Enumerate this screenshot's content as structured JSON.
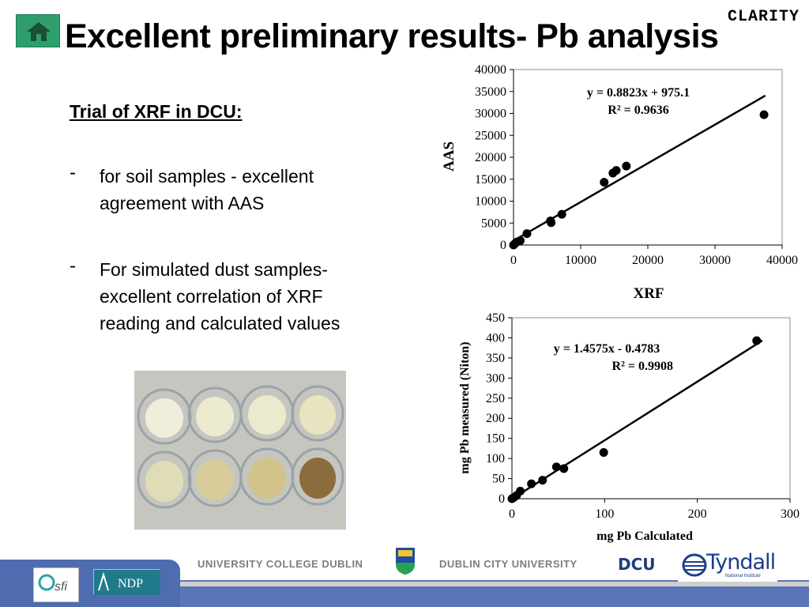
{
  "header": {
    "brand": "CLARITY",
    "title": "Excellent preliminary results- Pb analysis",
    "home_icon": "home-icon"
  },
  "content": {
    "subheading": "Trial of XRF in DCU:",
    "bullets": [
      {
        "marker": "-",
        "text": "for soil samples - excellent agreement with AAS"
      },
      {
        "marker": "-",
        "text": "For simulated dust samples- excellent correlation of XRF reading and calculated values"
      }
    ]
  },
  "colors": {
    "home_button": "#2e9e6e",
    "footer_band": "#5a76b6",
    "footer_panel": "#4f6cb0",
    "tyndall_blue": "#1b3e8a"
  },
  "footer": {
    "ucd_label": "UNIVERSITY COLLEGE DUBLIN",
    "dcu_label": "DUBLIN CITY UNIVERSITY",
    "dcu_logo": "DCU",
    "tyndall": "Tyndall",
    "tyndall_sub": "National Institute",
    "sfi_logo": "sfi",
    "ndp_logo": "NDP"
  },
  "chart_data": [
    {
      "type": "scatter",
      "xlabel": "XRF",
      "ylabel": "AAS",
      "xlim": [
        0,
        40000
      ],
      "ylim": [
        0,
        40000
      ],
      "xticks": [
        0,
        10000,
        20000,
        30000,
        40000
      ],
      "yticks": [
        0,
        5000,
        10000,
        15000,
        20000,
        25000,
        30000,
        35000,
        40000
      ],
      "equation": "y = 0.8823x + 975.1",
      "r2": "R² = 0.9636",
      "trendline": {
        "slope": 0.8823,
        "intercept": 975.1,
        "x_range": [
          0,
          37500
        ]
      },
      "points": [
        {
          "x": 0,
          "y": 0
        },
        {
          "x": 200,
          "y": 300
        },
        {
          "x": 500,
          "y": 700
        },
        {
          "x": 1000,
          "y": 1000
        },
        {
          "x": 2000,
          "y": 2600
        },
        {
          "x": 5500,
          "y": 5500
        },
        {
          "x": 5600,
          "y": 5100
        },
        {
          "x": 7200,
          "y": 7000
        },
        {
          "x": 13500,
          "y": 14300
        },
        {
          "x": 14800,
          "y": 16400
        },
        {
          "x": 15300,
          "y": 17000
        },
        {
          "x": 16800,
          "y": 18000
        },
        {
          "x": 37300,
          "y": 29700
        }
      ]
    },
    {
      "type": "scatter",
      "xlabel": "mg Pb Calculated",
      "ylabel": "mg Pb measured (Niton)",
      "xlim": [
        0,
        300
      ],
      "ylim": [
        0,
        450
      ],
      "xticks": [
        0,
        100,
        200,
        300
      ],
      "yticks": [
        0,
        50,
        100,
        150,
        200,
        250,
        300,
        350,
        400,
        450
      ],
      "equation": "y = 1.4575x - 0.4783",
      "r2": "R² = 0.9908",
      "trendline": {
        "slope": 1.4575,
        "intercept": -0.4783,
        "x_range": [
          0,
          270
        ]
      },
      "points": [
        {
          "x": 0,
          "y": 0
        },
        {
          "x": 2,
          "y": 3
        },
        {
          "x": 5,
          "y": 8
        },
        {
          "x": 9,
          "y": 19
        },
        {
          "x": 21,
          "y": 37
        },
        {
          "x": 33,
          "y": 46
        },
        {
          "x": 48,
          "y": 79
        },
        {
          "x": 56,
          "y": 75
        },
        {
          "x": 99,
          "y": 115
        },
        {
          "x": 264,
          "y": 393
        }
      ]
    }
  ]
}
